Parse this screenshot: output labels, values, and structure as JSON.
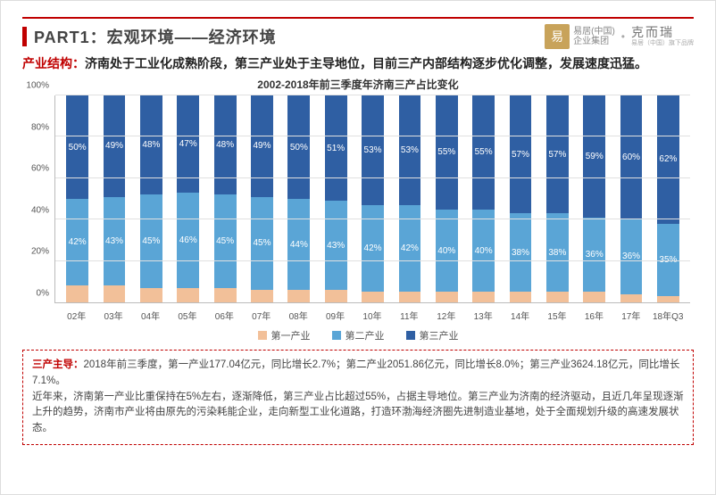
{
  "header": {
    "title": "PART1：宏观环境——经济环境",
    "logo_seal": "易",
    "logo_line1": "易居(中国)",
    "logo_line2": "企业集团",
    "logo_right_main": "克而瑞",
    "logo_right_sub": "易居（中国）旗下品牌"
  },
  "subtitle": {
    "red": "产业结构：",
    "black": "济南处于工业化成熟阶段，第三产业处于主导地位，目前三产内部结构逐步优化调整，发展速度迅猛。"
  },
  "chart": {
    "title": "2002-2018年前三季度年济南三产占比变化",
    "type": "stacked-bar-100",
    "y_ticks": [
      "0%",
      "20%",
      "40%",
      "60%",
      "80%",
      "100%"
    ],
    "y_max": 100,
    "categories": [
      "02年",
      "03年",
      "04年",
      "05年",
      "06年",
      "07年",
      "08年",
      "09年",
      "10年",
      "11年",
      "12年",
      "13年",
      "14年",
      "15年",
      "16年",
      "17年",
      "18年Q3"
    ],
    "series": [
      {
        "name": "第一产业",
        "color": "#f2c099"
      },
      {
        "name": "第二产业",
        "color": "#5aa5d6"
      },
      {
        "name": "第三产业",
        "color": "#2f5fa3"
      }
    ],
    "data": [
      {
        "s1": 8,
        "s2": 42,
        "s3": 50
      },
      {
        "s1": 8,
        "s2": 43,
        "s3": 49
      },
      {
        "s1": 7,
        "s2": 45,
        "s3": 48
      },
      {
        "s1": 7,
        "s2": 46,
        "s3": 47
      },
      {
        "s1": 7,
        "s2": 45,
        "s3": 48
      },
      {
        "s1": 6,
        "s2": 45,
        "s3": 49
      },
      {
        "s1": 6,
        "s2": 44,
        "s3": 50
      },
      {
        "s1": 6,
        "s2": 43,
        "s3": 51
      },
      {
        "s1": 5,
        "s2": 42,
        "s3": 53
      },
      {
        "s1": 5,
        "s2": 42,
        "s3": 53
      },
      {
        "s1": 5,
        "s2": 40,
        "s3": 55
      },
      {
        "s1": 5,
        "s2": 40,
        "s3": 55
      },
      {
        "s1": 5,
        "s2": 38,
        "s3": 57
      },
      {
        "s1": 5,
        "s2": 38,
        "s3": 57
      },
      {
        "s1": 5,
        "s2": 36,
        "s3": 59
      },
      {
        "s1": 4,
        "s2": 36,
        "s3": 60
      },
      {
        "s1": 3,
        "s2": 35,
        "s3": 62
      }
    ],
    "label_fontsize": 10,
    "grid_color": "#e0e0e0",
    "axis_color": "#bbbbbb"
  },
  "legend": {
    "items": [
      "第一产业",
      "第二产业",
      "第三产业"
    ],
    "colors": [
      "#f2c099",
      "#5aa5d6",
      "#2f5fa3"
    ]
  },
  "desc": {
    "lead": "三产主导：",
    "para1": "2018年前三季度，第一产业177.04亿元，同比增长2.7%；第二产业2051.86亿元，同比增长8.0%；第三产业3624.18亿元，同比增长7.1%。",
    "para2": "近年来，济南第一产业比重保持在5%左右，逐渐降低，第三产业占比超过55%，占据主导地位。第三产业为济南的经济驱动，且近几年呈现逐渐上升的趋势，济南市产业将由原先的污染耗能企业，走向新型工业化道路，打造环渤海经济圈先进制造业基地，处于全面规划升级的高速发展状态。"
  }
}
